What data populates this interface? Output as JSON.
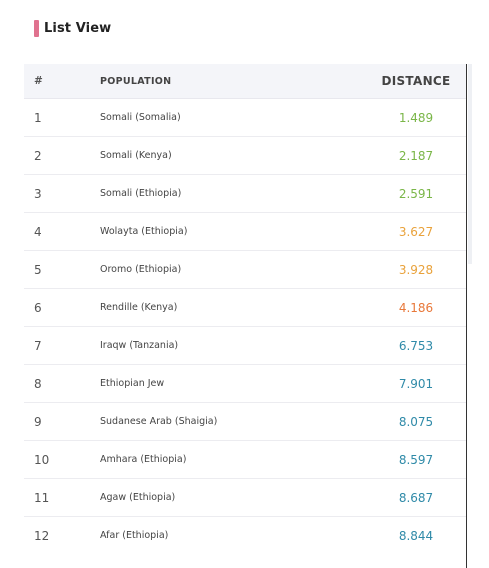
{
  "header": {
    "title": "List View",
    "accent_color": "#e0728f"
  },
  "table": {
    "columns": [
      "#",
      "POPULATION",
      "DISTANCE"
    ],
    "rows": [
      {
        "rank": "1",
        "population": "Somali (Somalia)",
        "distance": "1.489",
        "color": "#7ab648"
      },
      {
        "rank": "2",
        "population": "Somali (Kenya)",
        "distance": "2.187",
        "color": "#7ab648"
      },
      {
        "rank": "3",
        "population": "Somali (Ethiopia)",
        "distance": "2.591",
        "color": "#7ab648"
      },
      {
        "rank": "4",
        "population": "Wolayta (Ethiopia)",
        "distance": "3.627",
        "color": "#e9a23b"
      },
      {
        "rank": "5",
        "population": "Oromo (Ethiopia)",
        "distance": "3.928",
        "color": "#e9a23b"
      },
      {
        "rank": "6",
        "population": "Rendille (Kenya)",
        "distance": "4.186",
        "color": "#e8783a"
      },
      {
        "rank": "7",
        "population": "Iraqw (Tanzania)",
        "distance": "6.753",
        "color": "#2f8aa8"
      },
      {
        "rank": "8",
        "population": "Ethiopian Jew",
        "distance": "7.901",
        "color": "#2f8aa8"
      },
      {
        "rank": "9",
        "population": "Sudanese Arab (Shaigia)",
        "distance": "8.075",
        "color": "#2f8aa8"
      },
      {
        "rank": "10",
        "population": "Amhara (Ethiopia)",
        "distance": "8.597",
        "color": "#2f8aa8"
      },
      {
        "rank": "11",
        "population": "Agaw (Ethiopia)",
        "distance": "8.687",
        "color": "#2f8aa8"
      },
      {
        "rank": "12",
        "population": "Afar (Ethiopia)",
        "distance": "8.844",
        "color": "#2f8aa8"
      }
    ]
  }
}
